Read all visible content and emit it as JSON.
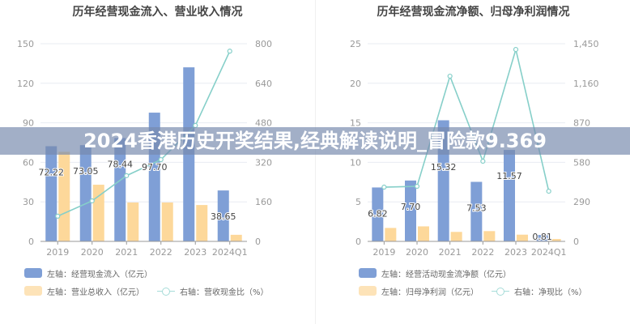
{
  "banner": {
    "text": "2024香港历史开奖结果,经典解读说明_冒险款9.369"
  },
  "colors": {
    "blue": "#7f9fd6",
    "orange": "#fdd89a",
    "line": "#86cfc9"
  },
  "chart_data": [
    {
      "type": "bar",
      "title": "历年经营现金流入、营业收入情况",
      "categories": [
        "2019",
        "2020",
        "2021",
        "2022",
        "2023",
        "2024Q1"
      ],
      "left_axis": {
        "ylim": [
          0,
          150
        ],
        "ticks": [
          "0",
          "30",
          "60",
          "90",
          "120",
          "150"
        ]
      },
      "right_axis": {
        "ylim": [
          0,
          800
        ],
        "ticks": [
          "0",
          "160",
          "320",
          "480",
          "640",
          "800"
        ]
      },
      "grid": true,
      "legend_position": "bottom",
      "series": [
        {
          "name": "左轴：经营现金流入（亿元）",
          "kind": "bar",
          "axis": "left",
          "values": [
            72.22,
            73.05,
            78.44,
            97.7,
            132.1,
            38.65
          ],
          "labels": [
            "72.22",
            "73.05",
            "78.44",
            "97.70",
            "",
            "38.65"
          ]
        },
        {
          "name": "左轴：营业总收入（亿元）",
          "kind": "bar",
          "axis": "left",
          "values": [
            68,
            43,
            29.5,
            29.5,
            27.6,
            5
          ]
        },
        {
          "name": "右轴：营收现金比（%）",
          "kind": "line",
          "axis": "right",
          "values": [
            102,
            164,
            266,
            331,
            469,
            770
          ]
        }
      ]
    },
    {
      "type": "bar",
      "title": "历年经营现金流净额、归母净利润情况",
      "categories": [
        "2019",
        "2020",
        "2021",
        "2022",
        "2023",
        "2024Q1"
      ],
      "left_axis": {
        "ylim": [
          0,
          25
        ],
        "ticks": [
          "0",
          "5",
          "10",
          "15",
          "20",
          "25"
        ]
      },
      "right_axis": {
        "ylim": [
          0,
          1450
        ],
        "ticks": [
          "0",
          "290",
          "580",
          "870",
          "1,160",
          "1,450"
        ]
      },
      "grid": true,
      "legend_position": "bottom",
      "series": [
        {
          "name": "左轴：经营活动现金流净额（亿元）",
          "kind": "bar",
          "axis": "left",
          "values": [
            6.82,
            7.7,
            15.32,
            7.53,
            11.57,
            0.81
          ],
          "labels": [
            "6.82",
            "7.70",
            "15.32",
            "7.53",
            "11.57",
            "0.81"
          ]
        },
        {
          "name": "左轴：归母净利润（亿元）",
          "kind": "bar",
          "axis": "left",
          "values": [
            1.7,
            1.9,
            1.2,
            1.3,
            0.85,
            0.3
          ]
        },
        {
          "name": "右轴：净现比（%）",
          "kind": "line",
          "axis": "right",
          "values": [
            398,
            404,
            1212,
            588,
            1408,
            368
          ]
        }
      ]
    }
  ]
}
